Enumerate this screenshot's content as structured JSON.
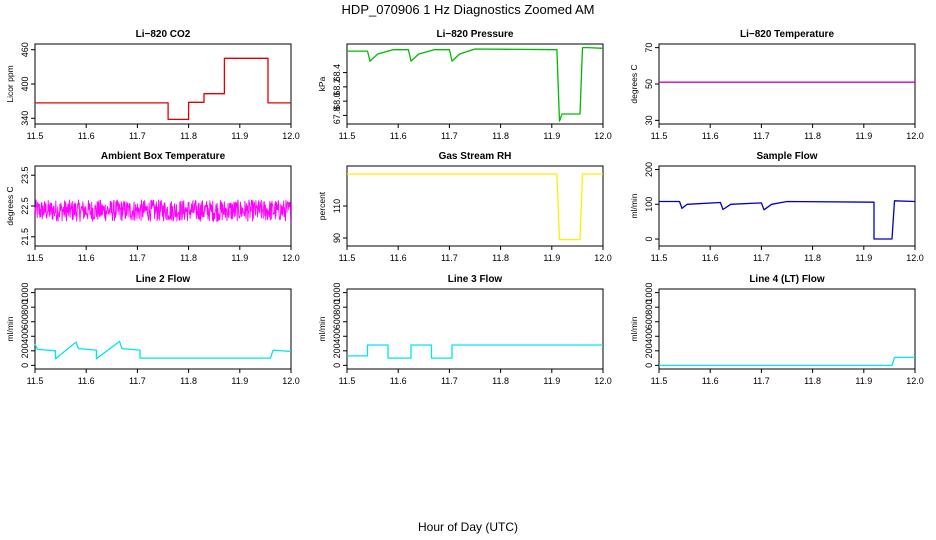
{
  "figure": {
    "title": "HDP_070906  1 Hz Diagnostics Zoomed AM",
    "xlabel": "Hour of Day (UTC)"
  },
  "chart_data": [
    {
      "type": "line",
      "title": "Li−820 CO2",
      "ylabel": "Licor ppm",
      "color": "#e00000",
      "xlim": [
        11.5,
        12.0
      ],
      "xticks": [
        "11.5",
        "11.6",
        "11.7",
        "11.8",
        "11.9",
        "12.0"
      ],
      "ylim": [
        330,
        470
      ],
      "yticks": [
        "340",
        "400",
        "460"
      ],
      "ytick_values": [
        340,
        400,
        460
      ],
      "x": [
        11.5,
        11.76,
        11.76,
        11.8,
        11.8,
        11.83,
        11.83,
        11.87,
        11.87,
        11.955,
        11.955,
        12.0
      ],
      "y": [
        367,
        367,
        338,
        338,
        368,
        368,
        383,
        383,
        445,
        445,
        367,
        367
      ]
    },
    {
      "type": "line",
      "title": "Li−820 Pressure",
      "ylabel": "kPa",
      "color": "#00bb00",
      "xlim": [
        11.5,
        12.0
      ],
      "xticks": [
        "11.5",
        "11.6",
        "11.7",
        "11.8",
        "11.9",
        "12.0"
      ],
      "ylim": [
        67.68,
        68.8
      ],
      "yticks": [
        "67.8",
        "68.0",
        "68.2",
        "68.4"
      ],
      "ytick_values": [
        67.8,
        68.0,
        68.2,
        68.4
      ],
      "x": [
        11.5,
        11.54,
        11.545,
        11.56,
        11.59,
        11.62,
        11.625,
        11.64,
        11.67,
        11.7,
        11.705,
        11.72,
        11.75,
        11.91,
        11.915,
        11.92,
        11.955,
        11.96,
        11.97,
        12.0
      ],
      "y": [
        68.7,
        68.7,
        68.56,
        68.66,
        68.72,
        68.72,
        68.56,
        68.66,
        68.72,
        68.72,
        68.56,
        68.66,
        68.73,
        68.72,
        67.72,
        67.82,
        67.82,
        68.75,
        68.75,
        68.74
      ]
    },
    {
      "type": "line",
      "title": "Li−820 Temperature",
      "ylabel": "degrees C",
      "color": "#cc00cc",
      "xlim": [
        11.5,
        12.0
      ],
      "xticks": [
        "11.5",
        "11.6",
        "11.7",
        "11.8",
        "11.9",
        "12.0"
      ],
      "ylim": [
        28,
        72
      ],
      "yticks": [
        "30",
        "50",
        "70"
      ],
      "ytick_values": [
        30,
        50,
        70
      ],
      "x": [
        11.5,
        12.0
      ],
      "y": [
        51,
        51
      ]
    },
    {
      "type": "line",
      "title": "Ambient Box Temperature",
      "ylabel": "degrees C",
      "color": "#ff00ff",
      "noisy": true,
      "xlim": [
        11.5,
        12.0
      ],
      "xticks": [
        "11.5",
        "11.6",
        "11.7",
        "11.8",
        "11.9",
        "12.0"
      ],
      "ylim": [
        21.2,
        23.8
      ],
      "yticks": [
        "21.5",
        "22.5",
        "23.5"
      ],
      "ytick_values": [
        21.5,
        22.5,
        23.5
      ],
      "x": [
        11.5,
        12.0
      ],
      "y": [
        22.35,
        22.35
      ],
      "noise_amplitude": 0.35
    },
    {
      "type": "line",
      "title": "Gas Stream RH",
      "ylabel": "percent",
      "color": "#ffee00",
      "xlim": [
        11.5,
        12.0
      ],
      "xticks": [
        "11.5",
        "11.6",
        "11.7",
        "11.8",
        "11.9",
        "12.0"
      ],
      "ylim": [
        85,
        135
      ],
      "yticks": [
        "90",
        "110"
      ],
      "ytick_values": [
        90,
        110
      ],
      "x": [
        11.5,
        11.91,
        11.915,
        11.955,
        11.96,
        12.0
      ],
      "y": [
        130,
        130,
        89,
        89,
        130,
        130
      ]
    },
    {
      "type": "line",
      "title": "Sample Flow",
      "ylabel": "ml/min",
      "color": "#0000cc",
      "xlim": [
        11.5,
        12.0
      ],
      "xticks": [
        "11.5",
        "11.6",
        "11.7",
        "11.8",
        "11.9",
        "12.0"
      ],
      "ylim": [
        -20,
        210
      ],
      "yticks": [
        "0",
        "100",
        "200"
      ],
      "ytick_values": [
        0,
        100,
        200
      ],
      "x": [
        11.5,
        11.54,
        11.545,
        11.555,
        11.62,
        11.625,
        11.64,
        11.7,
        11.705,
        11.72,
        11.75,
        11.92,
        11.92,
        11.955,
        11.96,
        12.0
      ],
      "y": [
        108,
        108,
        88,
        100,
        105,
        85,
        100,
        104,
        84,
        100,
        108,
        106,
        0,
        0,
        110,
        108
      ]
    },
    {
      "type": "line",
      "title": "Line 2 Flow",
      "ylabel": "ml/min",
      "color": "#00e5ee",
      "xlim": [
        11.5,
        12.0
      ],
      "xticks": [
        "11.5",
        "11.6",
        "11.7",
        "11.8",
        "11.9",
        "12.0"
      ],
      "ylim": [
        -50,
        1050
      ],
      "yticks": [
        "0",
        "200",
        "400",
        "600",
        "800",
        "1000"
      ],
      "ytick_values": [
        0,
        200,
        400,
        600,
        800,
        1000
      ],
      "x": [
        11.5,
        11.505,
        11.54,
        11.54,
        11.58,
        11.585,
        11.62,
        11.62,
        11.665,
        11.67,
        11.705,
        11.705,
        11.96,
        11.965,
        12.0
      ],
      "y": [
        290,
        220,
        200,
        90,
        320,
        230,
        210,
        90,
        330,
        230,
        210,
        100,
        100,
        210,
        190
      ]
    },
    {
      "type": "line",
      "title": "Line 3 Flow",
      "ylabel": "ml/min",
      "color": "#00e5ee",
      "xlim": [
        11.5,
        12.0
      ],
      "xticks": [
        "11.5",
        "11.6",
        "11.7",
        "11.8",
        "11.9",
        "12.0"
      ],
      "ylim": [
        -50,
        1050
      ],
      "yticks": [
        "0",
        "200",
        "400",
        "600",
        "800",
        "1000"
      ],
      "ytick_values": [
        0,
        200,
        400,
        600,
        800,
        1000
      ],
      "x": [
        11.5,
        11.54,
        11.54,
        11.58,
        11.58,
        11.625,
        11.625,
        11.665,
        11.665,
        11.705,
        11.705,
        12.0
      ],
      "y": [
        130,
        130,
        280,
        280,
        100,
        100,
        280,
        280,
        100,
        100,
        280,
        280
      ]
    },
    {
      "type": "line",
      "title": "Line 4 (LT) Flow",
      "ylabel": "ml/min",
      "color": "#00e5ee",
      "xlim": [
        11.5,
        12.0
      ],
      "xticks": [
        "11.5",
        "11.6",
        "11.7",
        "11.8",
        "11.9",
        "12.0"
      ],
      "ylim": [
        -50,
        1050
      ],
      "yticks": [
        "0",
        "200",
        "400",
        "600",
        "800",
        "1000"
      ],
      "ytick_values": [
        0,
        200,
        400,
        600,
        800,
        1000
      ],
      "x": [
        11.5,
        11.955,
        11.96,
        12.0
      ],
      "y": [
        0,
        0,
        110,
        110
      ]
    }
  ]
}
